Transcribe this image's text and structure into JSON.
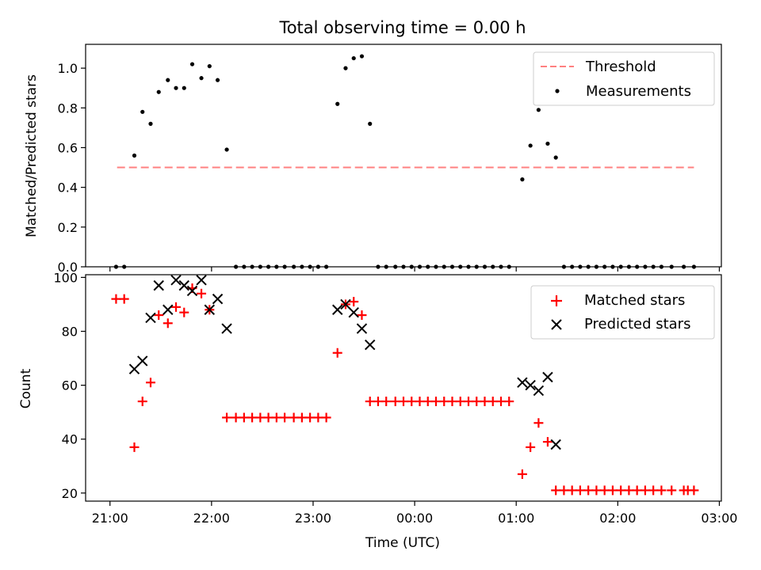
{
  "figure": {
    "title": "Total observing time = 0.00 h"
  },
  "chart_data": [
    {
      "type": "scatter",
      "ylabel": "Matched/Predicted stars",
      "ylim": [
        0,
        1.12
      ],
      "yticks": [
        0.0,
        0.2,
        0.4,
        0.6,
        0.8,
        1.0
      ],
      "ytick_labels": [
        "0.0",
        "0.2",
        "0.4",
        "0.6",
        "0.8",
        "1.0"
      ],
      "xlim_hours": [
        20.76,
        27.02
      ],
      "threshold": {
        "name": "Threshold",
        "value": 0.5,
        "x": [
          21.07,
          26.75
        ],
        "color": "#ff8080"
      },
      "series": [
        {
          "name": "Measurements",
          "color": "#000000",
          "marker": "dot",
          "x": [
            21.06,
            21.14,
            21.24,
            21.32,
            21.4,
            21.48,
            21.57,
            21.65,
            21.73,
            21.81,
            21.9,
            21.98,
            22.06,
            22.15,
            22.24,
            22.32,
            22.4,
            22.48,
            22.56,
            22.64,
            22.72,
            22.81,
            22.89,
            22.97,
            23.05,
            23.13,
            23.24,
            23.32,
            23.4,
            23.48,
            23.56,
            23.64,
            23.72,
            23.81,
            23.89,
            23.97,
            24.05,
            24.13,
            24.21,
            24.29,
            24.37,
            24.45,
            24.53,
            24.61,
            24.69,
            24.77,
            24.85,
            24.93,
            25.06,
            25.14,
            25.22,
            25.31,
            25.39,
            25.47,
            25.55,
            25.63,
            25.71,
            25.79,
            25.87,
            25.95,
            26.03,
            26.11,
            26.19,
            26.27,
            26.35,
            26.43,
            26.53,
            26.65,
            26.75
          ],
          "y": [
            0,
            0,
            0.56,
            0.78,
            0.72,
            0.88,
            0.94,
            0.9,
            0.9,
            1.02,
            0.95,
            1.01,
            0.94,
            0.59,
            0,
            0,
            0,
            0,
            0,
            0,
            0,
            0,
            0,
            0,
            0,
            0,
            0.82,
            1.0,
            1.05,
            1.06,
            0.72,
            0,
            0,
            0,
            0,
            0,
            0,
            0,
            0,
            0,
            0,
            0,
            0,
            0,
            0,
            0,
            0,
            0,
            0.44,
            0.61,
            0.79,
            0.62,
            0.55,
            0,
            0,
            0,
            0,
            0,
            0,
            0,
            0,
            0,
            0,
            0,
            0,
            0,
            0,
            0,
            0
          ]
        }
      ],
      "legend": {
        "position": "top-right",
        "entries": [
          "Threshold",
          "Measurements"
        ]
      }
    },
    {
      "type": "scatter",
      "xlabel": "Time (UTC)",
      "ylabel": "Count",
      "ylim": [
        17,
        101
      ],
      "yticks": [
        20,
        40,
        60,
        80,
        100
      ],
      "ytick_labels": [
        "20",
        "40",
        "60",
        "80",
        "100"
      ],
      "xlim_hours": [
        20.76,
        27.02
      ],
      "xticks_hours": [
        21,
        22,
        23,
        24,
        25,
        26,
        27
      ],
      "xtick_labels": [
        "21:00",
        "22:00",
        "23:00",
        "00:00",
        "01:00",
        "02:00",
        "03:00"
      ],
      "series": [
        {
          "name": "Matched stars",
          "color": "#ff0000",
          "marker": "plus",
          "x": [
            21.06,
            21.14,
            21.24,
            21.32,
            21.4,
            21.48,
            21.57,
            21.65,
            21.73,
            21.81,
            21.9,
            21.98,
            22.15,
            22.24,
            22.32,
            22.4,
            22.48,
            22.56,
            22.64,
            22.72,
            22.81,
            22.89,
            22.97,
            23.05,
            23.13,
            23.24,
            23.32,
            23.4,
            23.48,
            23.56,
            23.64,
            23.72,
            23.81,
            23.89,
            23.97,
            24.05,
            24.13,
            24.21,
            24.29,
            24.37,
            24.45,
            24.53,
            24.61,
            24.69,
            24.77,
            24.85,
            24.93,
            25.06,
            25.14,
            25.22,
            25.31,
            25.39,
            25.47,
            25.55,
            25.63,
            25.71,
            25.79,
            25.87,
            25.95,
            26.03,
            26.11,
            26.19,
            26.27,
            26.35,
            26.43,
            26.53,
            26.65,
            26.69,
            26.75
          ],
          "y": [
            92,
            92,
            37,
            54,
            61,
            86,
            83,
            89,
            87,
            96,
            94,
            88,
            48,
            48,
            48,
            48,
            48,
            48,
            48,
            48,
            48,
            48,
            48,
            48,
            48,
            72,
            90,
            91,
            86,
            54,
            54,
            54,
            54,
            54,
            54,
            54,
            54,
            54,
            54,
            54,
            54,
            54,
            54,
            54,
            54,
            54,
            54,
            27,
            37,
            46,
            39,
            21,
            21,
            21,
            21,
            21,
            21,
            21,
            21,
            21,
            21,
            21,
            21,
            21,
            21,
            21,
            21,
            21,
            21
          ]
        },
        {
          "name": "Predicted stars",
          "color": "#000000",
          "marker": "x",
          "x": [
            21.24,
            21.32,
            21.4,
            21.48,
            21.57,
            21.65,
            21.73,
            21.81,
            21.9,
            21.98,
            22.06,
            22.15,
            23.24,
            23.32,
            23.4,
            23.48,
            23.56,
            25.06,
            25.14,
            25.22,
            25.31,
            25.39
          ],
          "y": [
            66,
            69,
            85,
            97,
            88,
            99,
            97,
            95,
            99,
            88,
            92,
            81,
            88,
            90,
            87,
            81,
            75,
            61,
            60,
            58,
            63,
            38
          ]
        }
      ],
      "legend": {
        "position": "top-right",
        "entries": [
          "Matched stars",
          "Predicted stars"
        ]
      }
    }
  ]
}
